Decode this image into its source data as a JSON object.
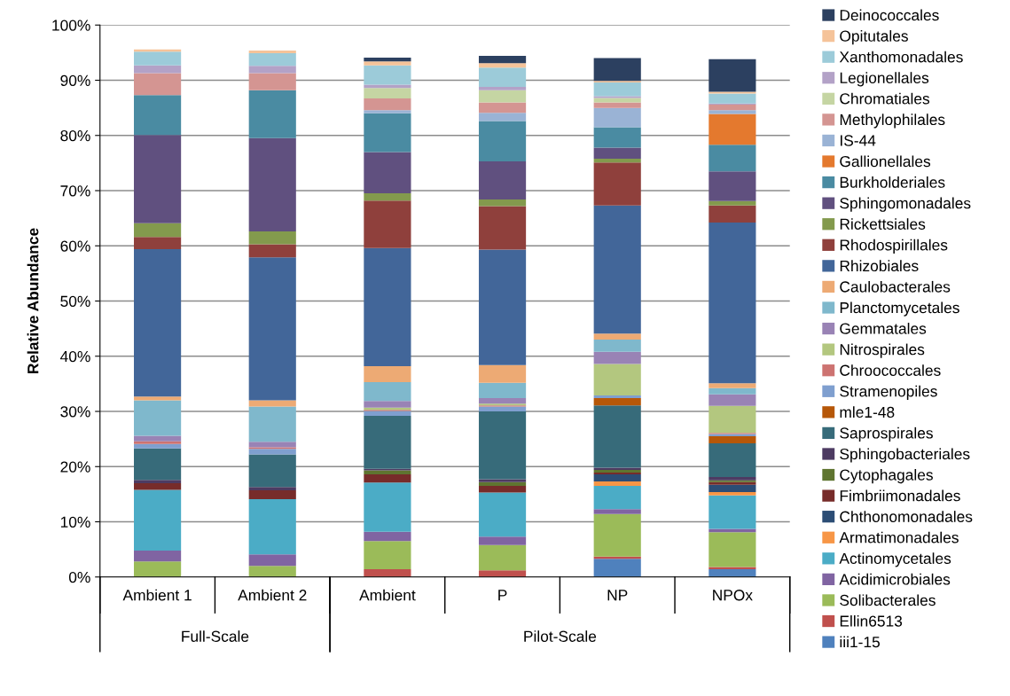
{
  "chart_data": {
    "type": "bar",
    "stacked": true,
    "ylabel": "Relative Abundance",
    "categories": [
      "Ambient 1",
      "Ambient 2",
      "Ambient",
      "P",
      "NP",
      "NPOx"
    ],
    "annotations": [
      "Full-Scale",
      "Pilot-Scale"
    ],
    "ylim": [
      0,
      100
    ],
    "yticks": [
      {
        "value": 0,
        "label": "0%"
      },
      {
        "value": 10,
        "label": "10%"
      },
      {
        "value": 20,
        "label": "20%"
      },
      {
        "value": 30,
        "label": "30%"
      },
      {
        "value": 40,
        "label": "40%"
      },
      {
        "value": 50,
        "label": "50%"
      },
      {
        "value": 60,
        "label": "60%"
      },
      {
        "value": 70,
        "label": "70%"
      },
      {
        "value": 80,
        "label": "80%"
      },
      {
        "value": 90,
        "label": "90%"
      },
      {
        "value": 100,
        "label": "100%"
      }
    ],
    "grid": "y",
    "legend": "right",
    "series": [
      {
        "name": "iii1-15",
        "color": "#4f81bd",
        "values": [
          0,
          0,
          0,
          0,
          3.3,
          1.4
        ]
      },
      {
        "name": "Ellin6513",
        "color": "#c0504d",
        "values": [
          0,
          0,
          1.4,
          1.2,
          0.4,
          0.4
        ]
      },
      {
        "name": "Solibacterales",
        "color": "#9bbb59",
        "values": [
          2.8,
          2.0,
          5.1,
          4.6,
          7.7,
          6.3
        ]
      },
      {
        "name": "Acidimicrobiales",
        "color": "#8064a2",
        "values": [
          2.0,
          2.1,
          1.7,
          1.5,
          0.9,
          0.6
        ]
      },
      {
        "name": "Actinomycetales",
        "color": "#4bacc6",
        "values": [
          11.0,
          10.0,
          8.9,
          8.0,
          4.2,
          6.1
        ]
      },
      {
        "name": "Armatimonadales",
        "color": "#f79646",
        "values": [
          0,
          0,
          0,
          0,
          0.8,
          0.6
        ]
      },
      {
        "name": "Chthonomonadales",
        "color": "#2c4d75",
        "values": [
          0,
          0,
          0,
          0,
          1.3,
          1.3
        ]
      },
      {
        "name": "Fimbriimonadales",
        "color": "#772c2a",
        "values": [
          1.2,
          1.6,
          1.5,
          1.2,
          0.3,
          0.5
        ]
      },
      {
        "name": "Cytophagales",
        "color": "#5f7530",
        "values": [
          0,
          0,
          0.7,
          0.7,
          0.5,
          0.3
        ]
      },
      {
        "name": "Sphingobacteriales",
        "color": "#4d3b62",
        "values": [
          0.6,
          0.6,
          0.3,
          0.5,
          0.4,
          0.6
        ]
      },
      {
        "name": "Saprospirales",
        "color": "#376b7a",
        "values": [
          5.7,
          5.9,
          9.6,
          12.3,
          11.3,
          6.1
        ]
      },
      {
        "name": "mle1-48",
        "color": "#b65708",
        "values": [
          0,
          0,
          0,
          0,
          1.3,
          1.3
        ]
      },
      {
        "name": "Stramenopiles",
        "color": "#7f9fcf",
        "values": [
          0.8,
          1.0,
          0.9,
          0.9,
          0.5,
          0.4
        ]
      },
      {
        "name": "Chroococcales",
        "color": "#cd7371",
        "values": [
          0.5,
          0.3,
          0.2,
          0.2,
          0,
          0.2
        ]
      },
      {
        "name": "Nitrospirales",
        "color": "#b3c77f",
        "values": [
          0,
          0,
          0.4,
          0.3,
          5.7,
          4.9
        ]
      },
      {
        "name": "Gemmatales",
        "color": "#9983b5",
        "values": [
          1.0,
          1.0,
          1.2,
          1.0,
          2.2,
          2.1
        ]
      },
      {
        "name": "Planctomycetales",
        "color": "#7fb8cc",
        "values": [
          6.4,
          6.4,
          3.4,
          2.8,
          2.2,
          1.1
        ]
      },
      {
        "name": "Caulobacterales",
        "color": "#edaa74",
        "values": [
          0.7,
          1.1,
          2.9,
          3.2,
          1.1,
          0.9
        ]
      },
      {
        "name": "Rhizobiales",
        "color": "#426699",
        "values": [
          26.7,
          25.9,
          21.4,
          20.9,
          23.2,
          29.1
        ]
      },
      {
        "name": "Rhodospirillales",
        "color": "#8f403c",
        "values": [
          2.2,
          2.4,
          8.6,
          7.9,
          7.8,
          3.1
        ]
      },
      {
        "name": "Rickettsiales",
        "color": "#839a4d",
        "values": [
          2.5,
          2.3,
          1.3,
          1.2,
          0.7,
          0.8
        ]
      },
      {
        "name": "Sphingomonadales",
        "color": "#60507f",
        "values": [
          16.0,
          16.9,
          7.5,
          6.9,
          2.0,
          5.4
        ]
      },
      {
        "name": "Burkholderiales",
        "color": "#4a8ba2",
        "values": [
          7.2,
          8.7,
          7.0,
          7.3,
          3.7,
          4.8
        ]
      },
      {
        "name": "Gallionellales",
        "color": "#e4792e",
        "values": [
          0,
          0,
          0,
          0,
          0,
          5.6
        ]
      },
      {
        "name": "IS-44",
        "color": "#9ab3d5",
        "values": [
          0,
          0,
          0.6,
          1.5,
          3.5,
          0.7
        ]
      },
      {
        "name": "Methylophilales",
        "color": "#d49592",
        "values": [
          4.0,
          3.1,
          2.1,
          1.9,
          1.0,
          1.0
        ]
      },
      {
        "name": "Chromatiales",
        "color": "#c5d5a3",
        "values": [
          0,
          0,
          1.9,
          2.2,
          0.8,
          0
        ]
      },
      {
        "name": "Legionellales",
        "color": "#b3a2c7",
        "values": [
          1.4,
          1.3,
          0.6,
          0.6,
          0.3,
          0.2
        ]
      },
      {
        "name": "Xanthomonadales",
        "color": "#9ccbd9",
        "values": [
          2.5,
          2.3,
          3.5,
          3.5,
          2.5,
          1.8
        ]
      },
      {
        "name": "Opitutales",
        "color": "#f5c399",
        "values": [
          0.4,
          0.5,
          0.7,
          0.8,
          0.3,
          0.3
        ]
      },
      {
        "name": "Deinococcales",
        "color": "#2c4060",
        "values": [
          0,
          0,
          0.7,
          1.3,
          4.1,
          5.9
        ]
      }
    ]
  }
}
